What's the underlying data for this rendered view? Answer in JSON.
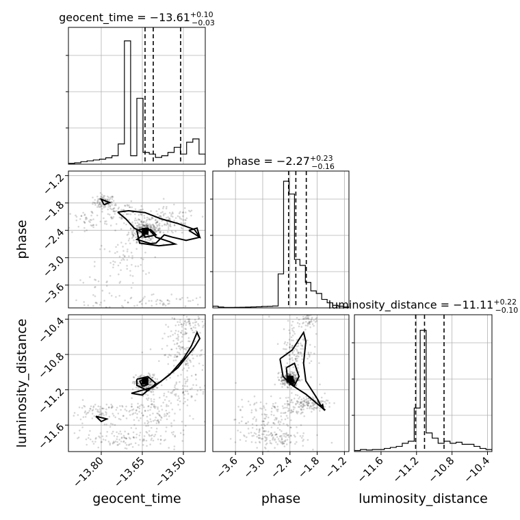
{
  "chart_data": {
    "type": "corner",
    "parameters": [
      "geocent_time",
      "phase",
      "luminosity_distance"
    ],
    "titles": [
      {
        "param": "geocent_time",
        "median": "−13.61",
        "plus": "+0.10",
        "minus": "−0.03"
      },
      {
        "param": "phase",
        "median": "−2.27",
        "plus": "+0.23",
        "minus": "−0.16"
      },
      {
        "param": "luminosity_distance",
        "median": "−11.11",
        "plus": "+0.22",
        "minus": "−0.10"
      }
    ],
    "axis_labels": {
      "x": [
        "geocent_time",
        "phase",
        "luminosity_distance"
      ],
      "y": [
        "phase",
        "luminosity_distance"
      ]
    },
    "ranges": {
      "geocent_time": [
        -13.92,
        -13.42
      ],
      "phase": [
        -4.1,
        -1.1
      ],
      "luminosity_distance": [
        -11.9,
        -10.35
      ]
    },
    "ticks": {
      "geocent_time": {
        "values": [
          -13.8,
          -13.65,
          -13.5
        ],
        "labels": [
          "−13.80",
          "−13.65",
          "−13.50"
        ]
      },
      "phase": {
        "values": [
          -3.6,
          -3.0,
          -2.4,
          -1.8,
          -1.2
        ],
        "labels": [
          "−3.6",
          "−3.0",
          "−2.4",
          "−1.8",
          "−1.2"
        ]
      },
      "luminosity_distance": {
        "values": [
          -11.6,
          -11.2,
          -10.8,
          -10.4
        ],
        "labels": [
          "−11.6",
          "−11.2",
          "−10.8",
          "−10.4"
        ]
      }
    },
    "quantiles": {
      "geocent_time": [
        -13.64,
        -13.61,
        -13.51
      ],
      "phase": [
        -2.43,
        -2.27,
        -2.04
      ],
      "luminosity_distance": [
        -11.21,
        -11.11,
        -10.89
      ]
    },
    "histograms": {
      "geocent_time": {
        "counts": [
          0.5,
          0.8,
          1.5,
          2.0,
          2.5,
          3.0,
          3.8,
          5.0,
          12.0,
          73.0,
          5.0,
          39.0,
          7.0,
          6.0,
          4.0,
          5.0,
          7.0,
          10.0,
          6.0,
          13.0,
          15.0,
          6.0
        ],
        "ymax": 81
      },
      "phase": {
        "counts": [
          2.0,
          1.0,
          0.5,
          0.5,
          0.6,
          0.7,
          0.9,
          1.1,
          1.3,
          1.7,
          1.9,
          2.2,
          40.0,
          149.0,
          134.0,
          57.0,
          50.0,
          30.0,
          20.0,
          17.0,
          10.0,
          6.0,
          3.0,
          2.0,
          1.0
        ],
        "ymax": 161
      },
      "luminosity_distance": {
        "counts": [
          1.0,
          2.0,
          1.5,
          2.0,
          2.0,
          3.0,
          4.0,
          5.0,
          8.0,
          10.0,
          42.0,
          117.0,
          18.0,
          13.0,
          8.0,
          10.0,
          8.0,
          9.0,
          7.0,
          7.0,
          5.0,
          3.0,
          2.0
        ],
        "ymax": 132
      }
    },
    "contours": {
      "phase_vs_geocent_time": [
        [
          [
            -13.79,
            -1.84
          ],
          [
            -13.8,
            -1.72
          ],
          [
            -13.77,
            -1.79
          ],
          [
            -13.79,
            -1.84
          ]
        ],
        [
          [
            -13.74,
            -2.0
          ],
          [
            -13.7,
            -1.97
          ],
          [
            -13.64,
            -2.01
          ],
          [
            -13.58,
            -2.15
          ],
          [
            -13.52,
            -2.25
          ],
          [
            -13.46,
            -2.38
          ],
          [
            -13.44,
            -2.55
          ],
          [
            -13.49,
            -2.62
          ],
          [
            -13.54,
            -2.55
          ],
          [
            -13.57,
            -2.5
          ],
          [
            -13.6,
            -2.68
          ],
          [
            -13.62,
            -2.69
          ],
          [
            -13.67,
            -2.6
          ],
          [
            -13.64,
            -2.48
          ],
          [
            -13.68,
            -2.35
          ],
          [
            -13.71,
            -2.15
          ],
          [
            -13.74,
            -2.0
          ]
        ],
        [
          [
            -13.67,
            -2.4
          ],
          [
            -13.63,
            -2.35
          ],
          [
            -13.6,
            -2.55
          ],
          [
            -13.55,
            -2.65
          ],
          [
            -13.53,
            -2.7
          ],
          [
            -13.59,
            -2.74
          ],
          [
            -13.66,
            -2.68
          ],
          [
            -13.67,
            -2.4
          ]
        ],
        [
          [
            -13.48,
            -2.4
          ],
          [
            -13.45,
            -2.35
          ],
          [
            -13.44,
            -2.55
          ],
          [
            -13.48,
            -2.4
          ]
        ],
        [
          [
            -13.65,
            -2.42
          ],
          [
            -13.62,
            -2.38
          ],
          [
            -13.6,
            -2.5
          ],
          [
            -13.64,
            -2.55
          ],
          [
            -13.65,
            -2.42
          ]
        ]
      ],
      "luminosity_distance_vs_geocent_time": [
        [
          [
            -13.82,
            -11.5
          ],
          [
            -13.78,
            -11.53
          ],
          [
            -13.8,
            -11.56
          ],
          [
            -13.82,
            -11.5
          ]
        ],
        [
          [
            -13.69,
            -11.24
          ],
          [
            -13.61,
            -11.17
          ],
          [
            -13.55,
            -11.03
          ],
          [
            -13.5,
            -10.85
          ],
          [
            -13.47,
            -10.7
          ],
          [
            -13.45,
            -10.55
          ],
          [
            -13.44,
            -10.62
          ],
          [
            -13.46,
            -10.72
          ],
          [
            -13.52,
            -10.95
          ],
          [
            -13.58,
            -11.1
          ],
          [
            -13.62,
            -11.18
          ],
          [
            -13.65,
            -11.26
          ],
          [
            -13.69,
            -11.24
          ]
        ],
        [
          [
            -13.67,
            -11.08
          ],
          [
            -13.63,
            -11.05
          ],
          [
            -13.6,
            -11.13
          ],
          [
            -13.63,
            -11.21
          ],
          [
            -13.67,
            -11.15
          ],
          [
            -13.67,
            -11.08
          ]
        ],
        [
          [
            -13.66,
            -11.1
          ],
          [
            -13.64,
            -11.09
          ],
          [
            -13.63,
            -11.14
          ],
          [
            -13.65,
            -11.16
          ],
          [
            -13.66,
            -11.1
          ]
        ]
      ],
      "luminosity_distance_vs_phase": [
        [
          [
            -2.62,
            -10.85
          ],
          [
            -2.35,
            -10.75
          ],
          [
            -2.1,
            -10.55
          ],
          [
            -2.05,
            -10.65
          ],
          [
            -2.1,
            -10.9
          ],
          [
            -2.05,
            -11.1
          ],
          [
            -1.8,
            -11.3
          ],
          [
            -1.7,
            -11.4
          ],
          [
            -1.62,
            -11.43
          ],
          [
            -1.75,
            -11.38
          ],
          [
            -2.05,
            -11.25
          ],
          [
            -2.35,
            -11.15
          ],
          [
            -2.55,
            -11.05
          ],
          [
            -2.62,
            -10.85
          ]
        ],
        [
          [
            -2.48,
            -10.95
          ],
          [
            -2.3,
            -10.9
          ],
          [
            -2.2,
            -11.05
          ],
          [
            -2.3,
            -11.15
          ],
          [
            -2.45,
            -11.1
          ],
          [
            -2.48,
            -10.95
          ]
        ],
        [
          [
            -2.42,
            -11.08
          ],
          [
            -2.35,
            -11.06
          ],
          [
            -2.3,
            -11.12
          ],
          [
            -2.4,
            -11.14
          ],
          [
            -2.42,
            -11.08
          ]
        ],
        [
          [
            -1.72,
            -11.39
          ],
          [
            -1.68,
            -11.37
          ],
          [
            -1.66,
            -11.42
          ],
          [
            -1.72,
            -11.39
          ]
        ]
      ]
    },
    "scatter_clusters": {
      "phase_vs_geocent_time": [
        {
          "cx": -13.79,
          "cy": -1.78,
          "sx": 0.02,
          "sy": 0.08,
          "n": 90
        },
        {
          "cx": -13.64,
          "cy": -2.4,
          "sx": 0.03,
          "sy": 0.12,
          "n": 260
        },
        {
          "cx": -13.55,
          "cy": -2.2,
          "sx": 0.05,
          "sy": 0.15,
          "n": 120
        },
        {
          "cx": -13.72,
          "cy": -2.0,
          "sx": 0.05,
          "sy": 0.1,
          "n": 80
        },
        {
          "cx": -13.72,
          "cy": -3.1,
          "sx": 0.05,
          "sy": 0.25,
          "n": 60
        },
        {
          "cx": -13.85,
          "cy": -2.2,
          "sx": 0.04,
          "sy": 0.15,
          "n": 40
        },
        {
          "cx": -13.6,
          "cy": -3.95,
          "sx": 0.1,
          "sy": 0.08,
          "n": 60
        },
        {
          "cx": -13.82,
          "cy": -3.75,
          "sx": 0.04,
          "sy": 0.25,
          "n": 30
        }
      ],
      "luminosity_distance_vs_geocent_time": [
        {
          "cx": -13.64,
          "cy": -11.13,
          "sx": 0.02,
          "sy": 0.05,
          "n": 200
        },
        {
          "cx": -13.5,
          "cy": -10.8,
          "sx": 0.04,
          "sy": 0.15,
          "n": 140
        },
        {
          "cx": -13.48,
          "cy": -10.45,
          "sx": 0.03,
          "sy": 0.05,
          "n": 60
        },
        {
          "cx": -13.78,
          "cy": -11.45,
          "sx": 0.08,
          "sy": 0.06,
          "n": 110
        },
        {
          "cx": -13.6,
          "cy": -11.5,
          "sx": 0.06,
          "sy": 0.15,
          "n": 120
        },
        {
          "cx": -13.72,
          "cy": -11.75,
          "sx": 0.1,
          "sy": 0.05,
          "n": 120
        },
        {
          "cx": -13.52,
          "cy": -11.25,
          "sx": 0.05,
          "sy": 0.08,
          "n": 60
        }
      ],
      "luminosity_distance_vs_phase": [
        {
          "cx": -2.4,
          "cy": -11.08,
          "sx": 0.1,
          "sy": 0.04,
          "n": 220
        },
        {
          "cx": -2.25,
          "cy": -10.75,
          "sx": 0.18,
          "sy": 0.18,
          "n": 130
        },
        {
          "cx": -1.95,
          "cy": -11.35,
          "sx": 0.2,
          "sy": 0.04,
          "n": 120
        },
        {
          "cx": -2.0,
          "cy": -10.4,
          "sx": 0.1,
          "sy": 0.05,
          "n": 50
        },
        {
          "cx": -3.0,
          "cy": -11.55,
          "sx": 0.3,
          "sy": 0.12,
          "n": 110
        },
        {
          "cx": -2.8,
          "cy": -11.75,
          "sx": 0.4,
          "sy": 0.05,
          "n": 110
        },
        {
          "cx": -2.4,
          "cy": -11.4,
          "sx": 0.2,
          "sy": 0.06,
          "n": 60
        }
      ]
    },
    "markers": {
      "phase_vs_geocent_time": [
        -13.64,
        -2.42
      ],
      "luminosity_distance_vs_geocent_time": [
        -13.64,
        -11.1
      ],
      "luminosity_distance_vs_phase": [
        -2.4,
        -11.08
      ]
    },
    "grid": true
  }
}
